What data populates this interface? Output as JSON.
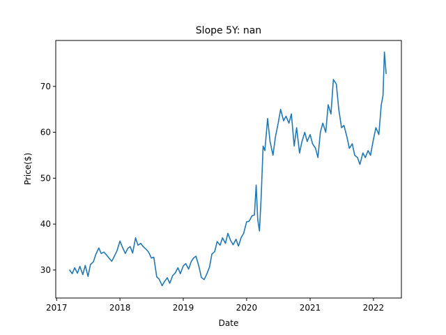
{
  "chart_data": {
    "type": "line",
    "title": "Slope 5Y: nan",
    "xlabel": "Date",
    "ylabel": "Price($)",
    "x_ticks": [
      "2017",
      "2018",
      "2019",
      "2020",
      "2021",
      "2022"
    ],
    "y_ticks": [
      30,
      40,
      50,
      60,
      70
    ],
    "xlim": [
      "2016-12-27",
      "2022-06-11"
    ],
    "ylim": [
      23.9,
      80.0
    ],
    "grid": false,
    "legend": "none",
    "colors": {
      "line": "#1f77b4"
    },
    "series": [
      {
        "x": [
          "2017-03-17",
          "2017-04-01",
          "2017-04-15",
          "2017-05-01",
          "2017-05-15",
          "2017-06-01",
          "2017-06-15",
          "2017-07-01",
          "2017-07-15",
          "2017-08-01",
          "2017-08-15",
          "2017-09-01",
          "2017-09-15",
          "2017-10-01",
          "2017-10-15",
          "2017-11-01",
          "2017-11-15",
          "2017-12-01",
          "2017-12-15",
          "2018-01-01",
          "2018-01-15",
          "2018-02-01",
          "2018-02-15",
          "2018-03-01",
          "2018-03-15",
          "2018-04-01",
          "2018-04-15",
          "2018-05-01",
          "2018-05-15",
          "2018-06-01",
          "2018-06-15",
          "2018-07-01",
          "2018-07-15",
          "2018-08-01",
          "2018-08-15",
          "2018-09-01",
          "2018-09-15",
          "2018-10-01",
          "2018-10-15",
          "2018-11-01",
          "2018-11-15",
          "2018-12-01",
          "2018-12-15",
          "2019-01-01",
          "2019-01-15",
          "2019-02-01",
          "2019-02-15",
          "2019-03-01",
          "2019-03-15",
          "2019-04-01",
          "2019-04-15",
          "2019-05-01",
          "2019-05-15",
          "2019-06-01",
          "2019-06-15",
          "2019-07-01",
          "2019-07-15",
          "2019-08-01",
          "2019-08-15",
          "2019-09-01",
          "2019-09-15",
          "2019-10-01",
          "2019-10-15",
          "2019-11-01",
          "2019-11-15",
          "2019-12-01",
          "2019-12-15",
          "2020-01-01",
          "2020-01-15",
          "2020-02-01",
          "2020-02-15",
          "2020-02-25",
          "2020-03-05",
          "2020-03-15",
          "2020-03-25",
          "2020-04-05",
          "2020-04-15",
          "2020-05-01",
          "2020-05-15",
          "2020-06-01",
          "2020-06-15",
          "2020-07-01",
          "2020-07-15",
          "2020-08-01",
          "2020-08-15",
          "2020-09-01",
          "2020-09-15",
          "2020-10-01",
          "2020-10-15",
          "2020-11-01",
          "2020-11-15",
          "2020-12-01",
          "2020-12-15",
          "2021-01-01",
          "2021-01-15",
          "2021-02-01",
          "2021-02-15",
          "2021-03-01",
          "2021-03-15",
          "2021-04-01",
          "2021-04-15",
          "2021-05-01",
          "2021-05-15",
          "2021-06-01",
          "2021-06-15",
          "2021-07-01",
          "2021-07-15",
          "2021-08-01",
          "2021-08-15",
          "2021-09-01",
          "2021-09-15",
          "2021-10-01",
          "2021-10-15",
          "2021-11-01",
          "2021-11-15",
          "2021-12-01",
          "2021-12-15",
          "2022-01-01",
          "2022-01-15",
          "2022-02-01",
          "2022-02-15",
          "2022-02-25",
          "2022-03-05",
          "2022-03-15"
        ],
        "y": [
          30.0,
          29.2,
          30.5,
          29.3,
          30.8,
          29.0,
          31.0,
          28.6,
          31.2,
          31.8,
          33.4,
          34.8,
          33.6,
          33.9,
          33.3,
          32.5,
          31.9,
          33.1,
          34.2,
          36.3,
          35.0,
          33.6,
          34.7,
          35.1,
          33.7,
          37.0,
          35.4,
          35.8,
          35.1,
          34.5,
          33.9,
          32.6,
          32.8,
          28.5,
          28.0,
          26.6,
          27.5,
          28.3,
          27.1,
          28.8,
          29.3,
          30.5,
          29.2,
          30.9,
          31.4,
          30.2,
          31.8,
          32.6,
          33.0,
          30.8,
          28.4,
          27.9,
          29.0,
          30.6,
          33.5,
          34.0,
          36.2,
          35.4,
          37.0,
          35.8,
          38.0,
          36.4,
          35.5,
          36.7,
          35.2,
          37.1,
          38.0,
          40.5,
          40.6,
          41.8,
          42.0,
          48.5,
          41.0,
          38.5,
          46.0,
          57.0,
          56.0,
          63.0,
          58.0,
          55.0,
          59.0,
          62.0,
          65.0,
          62.5,
          63.5,
          62.0,
          64.0,
          57.0,
          61.0,
          55.5,
          58.0,
          60.0,
          58.0,
          59.5,
          57.5,
          56.5,
          54.5,
          60.0,
          62.0,
          60.0,
          66.0,
          64.0,
          71.5,
          70.5,
          65.0,
          61.0,
          61.5,
          59.0,
          56.5,
          57.5,
          55.0,
          54.5,
          53.0,
          55.5,
          54.5,
          56.0,
          55.0,
          58.5,
          61.0,
          59.5,
          66.0,
          68.0,
          77.5,
          72.8
        ]
      }
    ]
  }
}
